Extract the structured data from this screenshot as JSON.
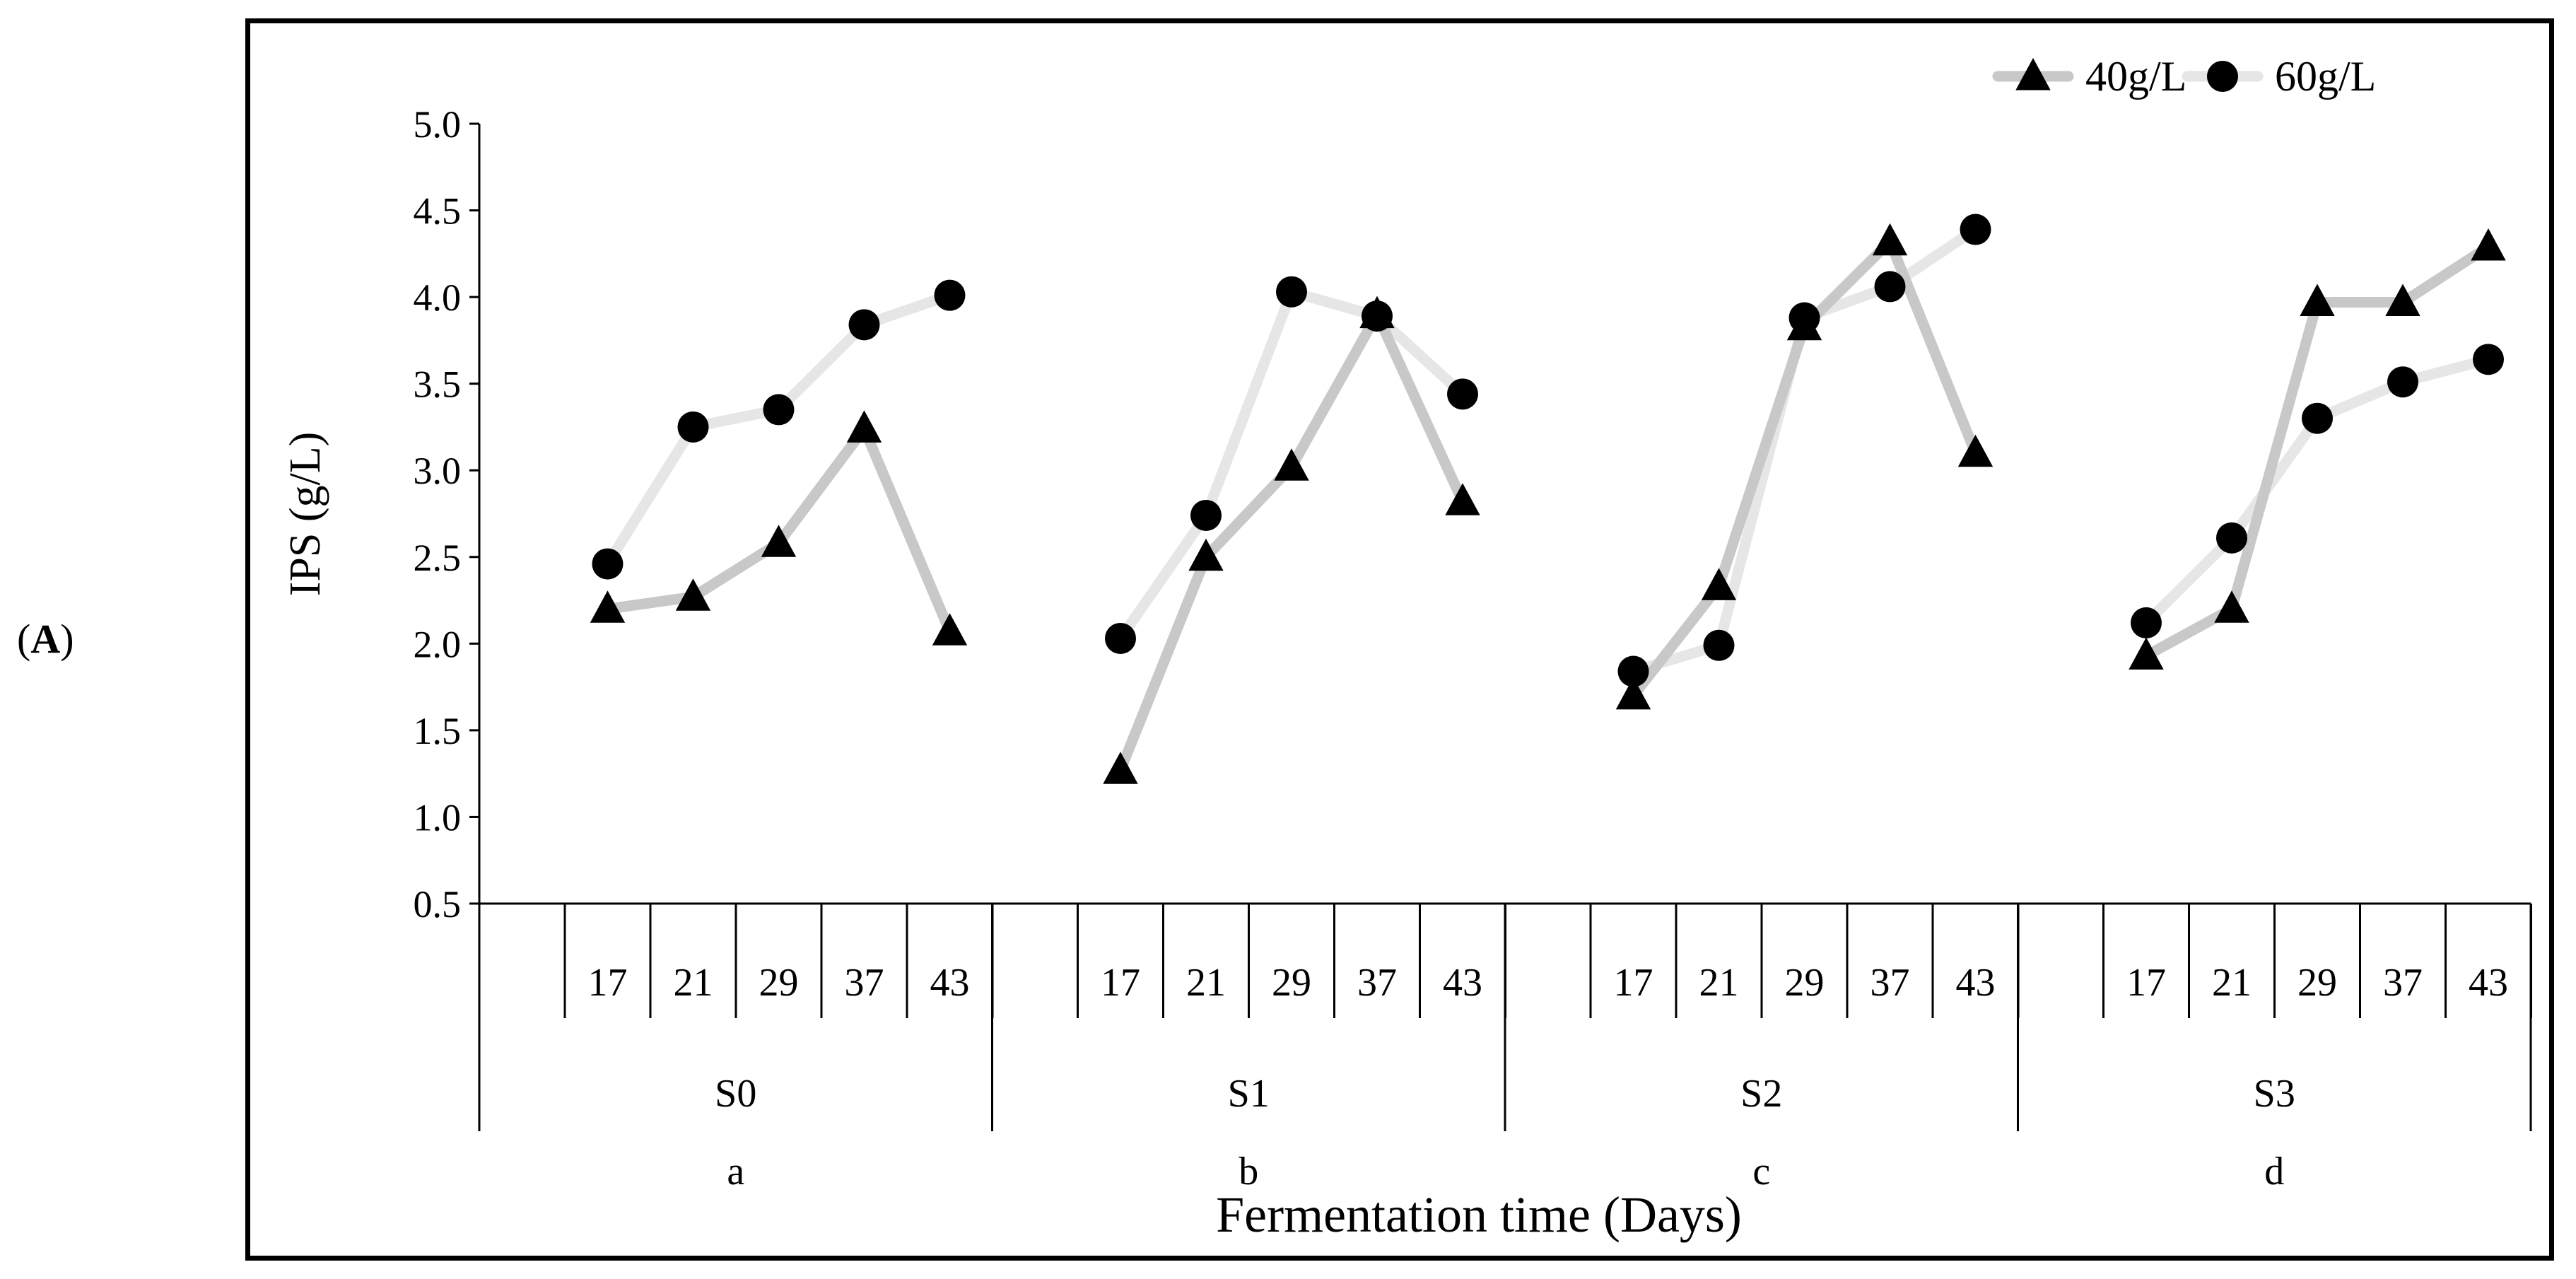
{
  "panel_label": {
    "paren_open": "(",
    "letter": "A",
    "paren_close": ")"
  },
  "chart_data": {
    "type": "line",
    "title": "",
    "xlabel": "Fermentation time (Days)",
    "ylabel": "IPS (g/L)",
    "ylim": [
      0.5,
      5.0
    ],
    "yticks": [
      "5.0",
      "4.5",
      "4.0",
      "3.5",
      "3.0",
      "2.5",
      "2.0",
      "1.5",
      "1.0",
      "0.5"
    ],
    "legend_position": "top-right",
    "groups": [
      {
        "name": "S0",
        "letter": "a",
        "days": [
          "17",
          "21",
          "29",
          "37",
          "43"
        ]
      },
      {
        "name": "S1",
        "letter": "b",
        "days": [
          "17",
          "21",
          "29",
          "37",
          "43"
        ]
      },
      {
        "name": "S2",
        "letter": "c",
        "days": [
          "17",
          "21",
          "29",
          "37",
          "43"
        ]
      },
      {
        "name": "S3",
        "letter": "d",
        "days": [
          "17",
          "21",
          "29",
          "37",
          "43"
        ]
      }
    ],
    "series": [
      {
        "name": "40g/L",
        "marker": "triangle",
        "color": "#c8c8c8",
        "values": [
          [
            2.2,
            2.27,
            2.58,
            3.24,
            2.07
          ],
          [
            1.27,
            2.5,
            3.02,
            3.9,
            2.82
          ],
          [
            1.7,
            2.33,
            3.83,
            4.32,
            3.1
          ],
          [
            1.93,
            2.2,
            3.97,
            3.97,
            4.29
          ]
        ]
      },
      {
        "name": "60g/L",
        "marker": "circle",
        "color": "#e6e6e6",
        "values": [
          [
            2.46,
            3.25,
            3.35,
            3.84,
            4.01
          ],
          [
            2.03,
            2.74,
            4.03,
            3.89,
            3.44
          ],
          [
            1.84,
            1.99,
            3.88,
            4.06,
            4.39
          ],
          [
            2.12,
            2.61,
            3.3,
            3.51,
            3.64
          ]
        ]
      }
    ]
  }
}
